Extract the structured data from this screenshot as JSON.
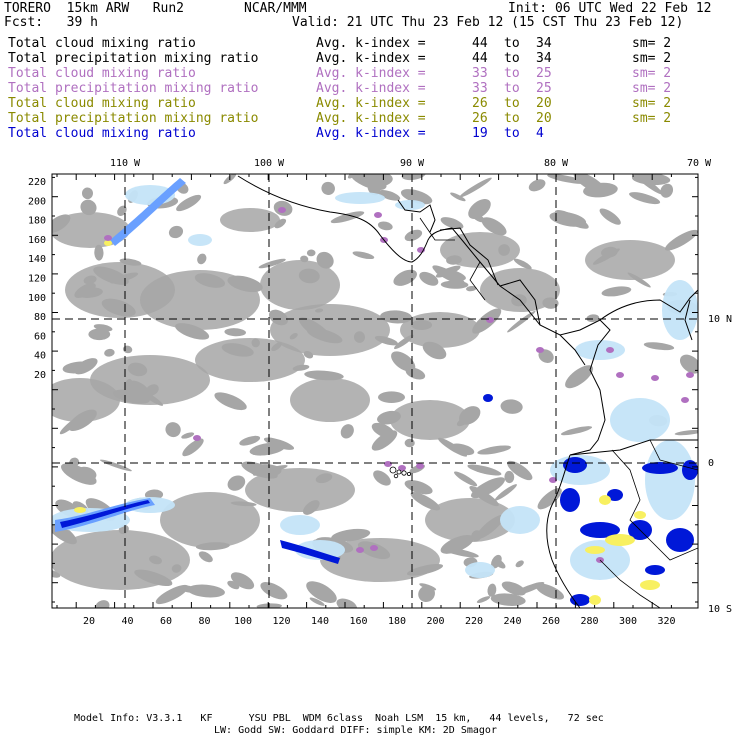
{
  "header": {
    "model": "TORERO  15km ARW   Run2",
    "org": "NCAR/MMM",
    "init": "Init: 06 UTC Wed 22 Feb 12",
    "fcst": "Fcst:   39 h",
    "valid": "Valid: 21 UTC Thu 23 Feb 12 (15 CST Thu 23 Feb 12)"
  },
  "legend": [
    {
      "field": "Total cloud mixing ratio",
      "kidx": "Avg. k-index =",
      "a": "44",
      "to": "to",
      "b": "34",
      "sm": "sm= 2",
      "color": "#000000"
    },
    {
      "field": "Total precipitation mixing ratio",
      "kidx": "Avg. k-index =",
      "a": "44",
      "to": "to",
      "b": "34",
      "sm": "sm= 2",
      "color": "#000000"
    },
    {
      "field": "Total cloud mixing ratio",
      "kidx": "Avg. k-index =",
      "a": "33",
      "to": "to",
      "b": "25",
      "sm": "sm= 2",
      "color": "#b070c0"
    },
    {
      "field": "Total precipitation mixing ratio",
      "kidx": "Avg. k-index =",
      "a": "33",
      "to": "to",
      "b": "25",
      "sm": "sm= 2",
      "color": "#b070c0"
    },
    {
      "field": "Total cloud mixing ratio",
      "kidx": "Avg. k-index =",
      "a": "26",
      "to": "to",
      "b": "20",
      "sm": "sm= 2",
      "color": "#8a8a00"
    },
    {
      "field": "Total precipitation mixing ratio",
      "kidx": "Avg. k-index =",
      "a": "26",
      "to": "to",
      "b": "20",
      "sm": "sm= 2",
      "color": "#8a8a00"
    },
    {
      "field": "Total cloud mixing ratio",
      "kidx": "Avg. k-index =",
      "a": "19",
      "to": "to",
      "b": "4",
      "sm": "",
      "color": "#0000d0"
    }
  ],
  "axes": {
    "top": [
      "110 W",
      "100 W",
      "90 W",
      "80 W",
      "70 W"
    ],
    "right": [
      "10 N",
      "0",
      "10 S"
    ],
    "left": [
      "220",
      "200",
      "180",
      "160",
      "140",
      "120",
      "100",
      "80",
      "60",
      "40",
      "20"
    ],
    "bottom": [
      "20",
      "40",
      "60",
      "80",
      "100",
      "120",
      "140",
      "160",
      "180",
      "200",
      "220",
      "240",
      "260",
      "280",
      "300",
      "320"
    ]
  },
  "colors": {
    "cloud_gray": "#a6a6a6",
    "light_blue": "#c4e4f8",
    "mid_blue": "#6aa0ff",
    "dark_blue": "#0018d8",
    "purple": "#b070c0",
    "yellow": "#f8f060",
    "grid": "#000000"
  },
  "footer": {
    "line1": "Model Info: V3.3.1   KF      YSU PBL  WDM 6class  Noah LSM  15 km,   44 levels,   72 sec",
    "line2": "LW: Godd SW: Goddard DIFF: simple KM: 2D Smagor"
  }
}
